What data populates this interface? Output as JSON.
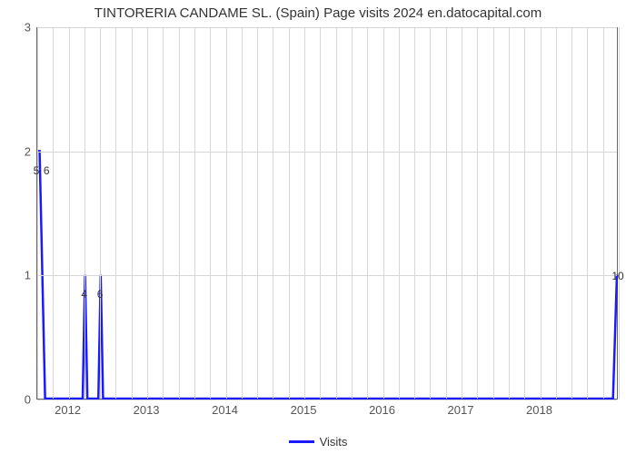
{
  "chart": {
    "type": "line",
    "title": "TINTORERIA CANDAME SL. (Spain) Page visits 2024 en.datocapital.com",
    "title_fontsize": 15,
    "title_color": "#333333",
    "background_color": "#ffffff",
    "plot_background": "#ffffff",
    "grid_color": "#d6d6d6",
    "axis_color": "#666666",
    "line_color": "#1a1aff",
    "line_width": 2.5,
    "x_range": [
      2011.6,
      2019.0
    ],
    "y_range": [
      0,
      3
    ],
    "y_ticks": [
      0,
      1,
      2,
      3
    ],
    "x_major_ticks": [
      2012,
      2013,
      2014,
      2015,
      2016,
      2017,
      2018
    ],
    "minor_grid_per_major": 4,
    "points_x": [
      2011.6,
      2011.63,
      2011.7,
      2011.73,
      2012.18,
      2012.21,
      2012.24,
      2012.38,
      2012.41,
      2012.44,
      2012.5,
      2018.9,
      2018.95,
      2019.0
    ],
    "points_y": [
      2,
      2,
      0,
      0,
      0,
      1,
      0,
      0,
      1,
      0,
      0,
      0,
      0,
      1
    ],
    "data_labels": [
      {
        "x": 2011.6,
        "y": 2,
        "text": "5",
        "dy": 14
      },
      {
        "x": 2011.73,
        "y": 2,
        "text": "6",
        "dy": 14
      },
      {
        "x": 2012.21,
        "y": 1,
        "text": "4",
        "dy": 14
      },
      {
        "x": 2012.41,
        "y": 1,
        "text": "6",
        "dy": 14
      },
      {
        "x": 2019.0,
        "y": 1,
        "text": "10",
        "dy": -6
      }
    ],
    "legend": {
      "label": "Visits",
      "color": "#1a1aff"
    }
  }
}
